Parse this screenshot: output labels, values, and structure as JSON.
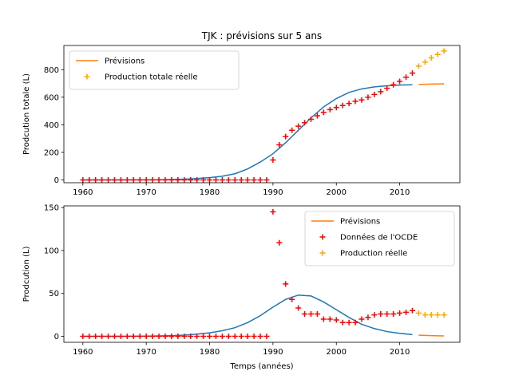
{
  "chart_data": [
    {
      "type": "line",
      "title": "TJK : prévisions sur 5 ans",
      "xlabel": "",
      "ylabel": "Prodcution totale (L)",
      "xlim": [
        1957,
        2019.5
      ],
      "ylim": [
        -20,
        975
      ],
      "xticks": [
        1960,
        1970,
        1980,
        1990,
        2000,
        2010
      ],
      "yticks": [
        0,
        200,
        400,
        600,
        800
      ],
      "legend_position": "upper-left",
      "series": [
        {
          "name": "",
          "kind": "line",
          "color": "#1f77b4",
          "x": [
            1960,
            1962,
            1964,
            1966,
            1968,
            1970,
            1972,
            1974,
            1976,
            1978,
            1980,
            1982,
            1984,
            1986,
            1988,
            1990,
            1992,
            1994,
            1996,
            1998,
            2000,
            2002,
            2004,
            2006,
            2008,
            2010,
            2012
          ],
          "values": [
            0,
            0,
            0,
            0,
            1,
            1,
            2,
            4,
            6,
            10,
            17,
            27,
            45,
            80,
            130,
            190,
            270,
            360,
            450,
            530,
            590,
            635,
            660,
            675,
            683,
            688,
            690
          ]
        },
        {
          "name": "Prévisions",
          "kind": "line",
          "color": "#ff7f0e",
          "x": [
            2013,
            2014,
            2015,
            2016,
            2017
          ],
          "values": [
            693,
            694,
            695,
            696,
            697
          ]
        },
        {
          "name": "",
          "kind": "marker",
          "color": "#ff0000",
          "x": [
            1960,
            1961,
            1962,
            1963,
            1964,
            1965,
            1966,
            1967,
            1968,
            1969,
            1970,
            1971,
            1972,
            1973,
            1974,
            1975,
            1976,
            1977,
            1978,
            1979,
            1980,
            1981,
            1982,
            1983,
            1984,
            1985,
            1986,
            1987,
            1988,
            1989,
            1990,
            1991,
            1992,
            1993,
            1994,
            1995,
            1996,
            1997,
            1998,
            1999,
            2000,
            2001,
            2002,
            2003,
            2004,
            2005,
            2006,
            2007,
            2008,
            2009,
            2010,
            2011,
            2012
          ],
          "values": [
            0,
            0,
            0,
            0,
            0,
            0,
            0,
            0,
            0,
            0,
            0,
            0,
            0,
            0,
            0,
            0,
            0,
            0,
            0,
            0,
            0,
            0,
            0,
            0,
            0,
            0,
            0,
            0,
            0,
            0,
            145,
            255,
            315,
            360,
            390,
            415,
            440,
            465,
            490,
            510,
            525,
            540,
            555,
            570,
            580,
            600,
            620,
            640,
            665,
            690,
            715,
            745,
            775
          ]
        },
        {
          "name": "Production totale réelle",
          "kind": "marker",
          "color": "#ffa500",
          "x": [
            2013,
            2014,
            2015,
            2016,
            2017
          ],
          "values": [
            825,
            855,
            885,
            910,
            935
          ]
        }
      ]
    },
    {
      "type": "line",
      "title": "",
      "xlabel": "Temps (années)",
      "ylabel": "Prodcution (L)",
      "xlim": [
        1957,
        2019.5
      ],
      "ylim": [
        -7,
        152
      ],
      "xticks": [
        1960,
        1970,
        1980,
        1990,
        2000,
        2010
      ],
      "yticks": [
        0,
        50,
        100,
        150
      ],
      "legend_position": "upper-right",
      "series": [
        {
          "name": "",
          "kind": "line",
          "color": "#1f77b4",
          "x": [
            1960,
            1962,
            1964,
            1966,
            1968,
            1970,
            1972,
            1974,
            1976,
            1978,
            1980,
            1982,
            1984,
            1986,
            1988,
            1990,
            1992,
            1994,
            1996,
            1998,
            2000,
            2002,
            2004,
            2006,
            2008,
            2010,
            2012
          ],
          "values": [
            0,
            0,
            0,
            0,
            0.1,
            0.2,
            0.4,
            0.8,
            1.4,
            2.5,
            4,
            6.5,
            10,
            16,
            24,
            34,
            43,
            48,
            47,
            40,
            31,
            22,
            14,
            9,
            5.5,
            3.5,
            2
          ]
        },
        {
          "name": "Prévisions",
          "kind": "line",
          "color": "#ff7f0e",
          "x": [
            2013,
            2014,
            2015,
            2016,
            2017
          ],
          "values": [
            1.2,
            1.0,
            0.8,
            0.6,
            0.4
          ]
        },
        {
          "name": "Données de l'OCDE",
          "kind": "marker",
          "color": "#ff0000",
          "x": [
            1960,
            1961,
            1962,
            1963,
            1964,
            1965,
            1966,
            1967,
            1968,
            1969,
            1970,
            1971,
            1972,
            1973,
            1974,
            1975,
            1976,
            1977,
            1978,
            1979,
            1980,
            1981,
            1982,
            1983,
            1984,
            1985,
            1986,
            1987,
            1988,
            1989,
            1990,
            1991,
            1992,
            1993,
            1994,
            1995,
            1996,
            1997,
            1998,
            1999,
            2000,
            2001,
            2002,
            2003,
            2004,
            2005,
            2006,
            2007,
            2008,
            2009,
            2010,
            2011,
            2012
          ],
          "values": [
            0,
            0,
            0,
            0,
            0,
            0,
            0,
            0,
            0,
            0,
            0,
            0,
            0,
            0,
            0,
            0,
            0,
            0,
            0,
            0,
            0,
            0,
            0,
            0,
            0,
            0,
            0,
            0,
            0,
            0,
            145,
            109,
            61,
            43,
            33,
            26,
            26,
            26,
            20,
            20,
            19,
            16,
            16,
            16,
            20,
            22,
            25,
            26,
            26,
            26,
            27,
            28,
            30
          ]
        },
        {
          "name": "Production réelle",
          "kind": "marker",
          "color": "#ffa500",
          "x": [
            2013,
            2014,
            2015,
            2016,
            2017
          ],
          "values": [
            27,
            25,
            25,
            25,
            25
          ]
        }
      ]
    }
  ]
}
